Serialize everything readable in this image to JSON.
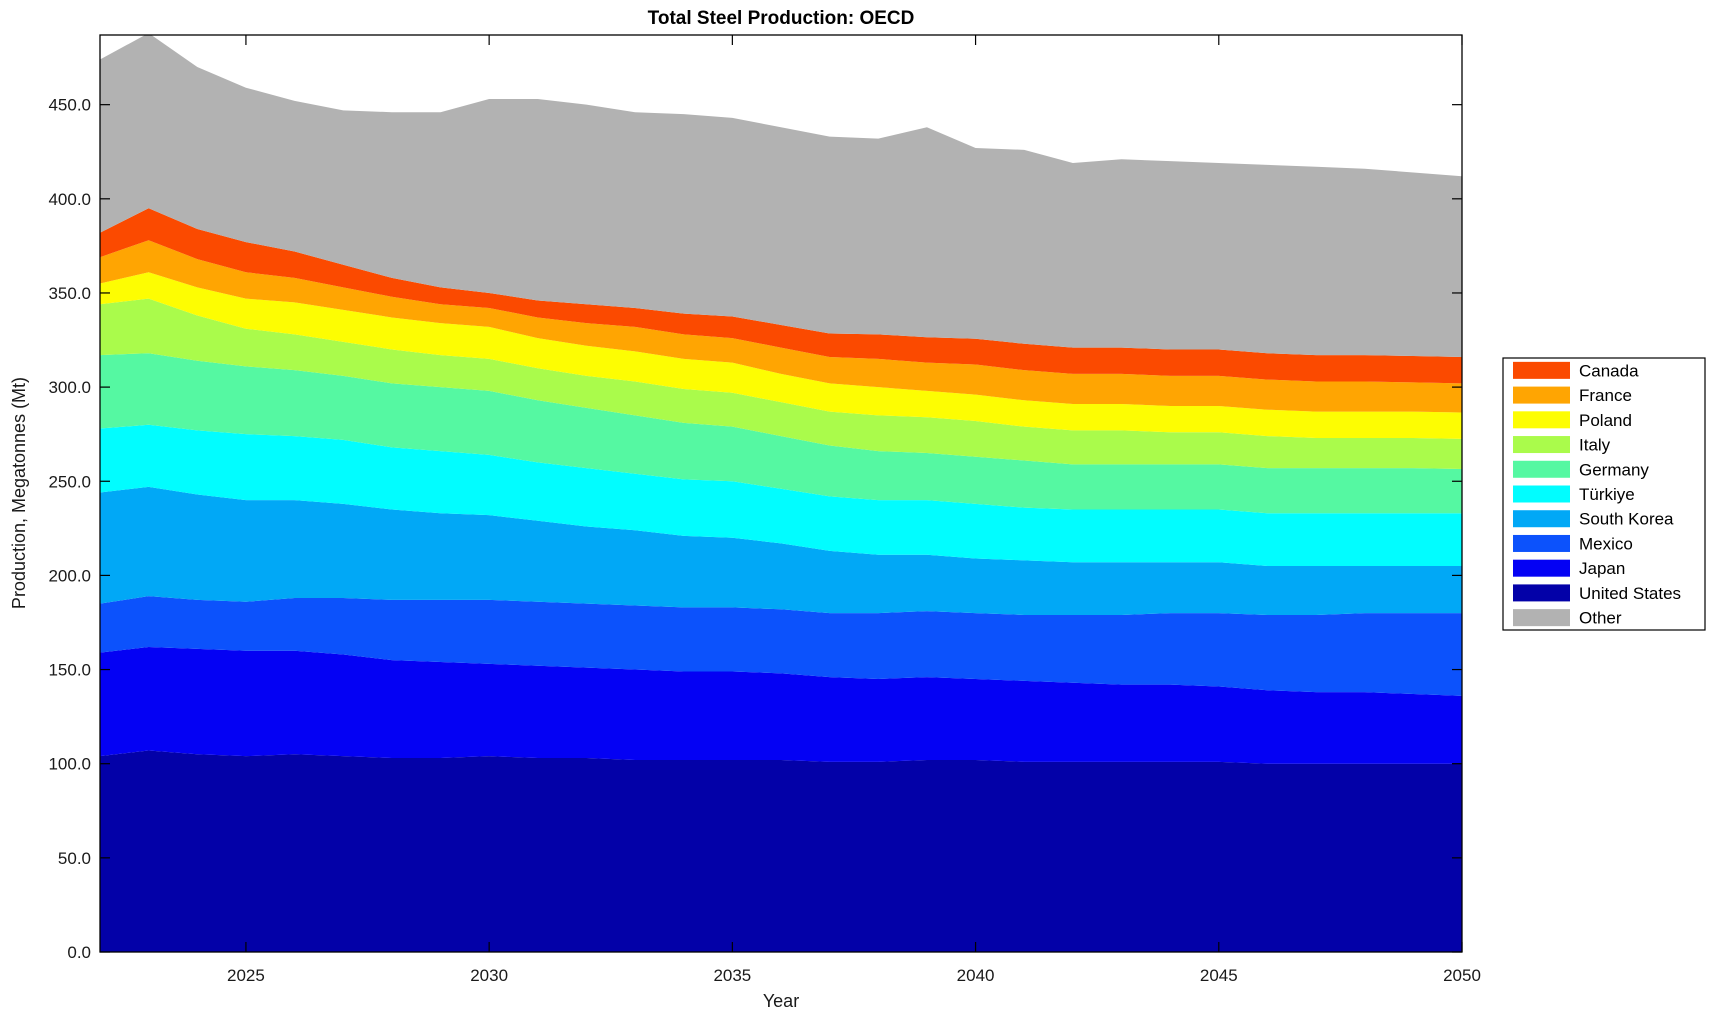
{
  "title": "Total Steel Production: OECD",
  "chart_data": {
    "type": "area",
    "stacked": true,
    "title": "Total Steel Production: OECD",
    "xlabel": "Year",
    "ylabel": "Production, Megatonnes (Mt)",
    "xlim": [
      2022,
      2050
    ],
    "ylim": [
      0,
      487
    ],
    "grid": false,
    "legend_position": "right-outside",
    "x": [
      2022,
      2023,
      2024,
      2025,
      2026,
      2027,
      2028,
      2029,
      2030,
      2031,
      2032,
      2033,
      2034,
      2035,
      2036,
      2037,
      2038,
      2039,
      2040,
      2041,
      2042,
      2043,
      2044,
      2045,
      2046,
      2047,
      2048,
      2049,
      2050
    ],
    "x_ticks": [
      2025,
      2030,
      2035,
      2040,
      2045,
      2050
    ],
    "x_tick_labels": [
      "2025",
      "2030",
      "2035",
      "2040",
      "2045",
      "2050"
    ],
    "y_ticks": [
      0,
      50,
      100,
      150,
      200,
      250,
      300,
      350,
      400,
      450
    ],
    "y_tick_labels": [
      "0.0",
      "50.0",
      "100.0",
      "150.0",
      "200.0",
      "250.0",
      "300.0",
      "350.0",
      "400.0",
      "450.0"
    ],
    "stack_order_bottom_to_top": [
      "United States",
      "Japan",
      "Mexico",
      "South Korea",
      "Türkiye",
      "Germany",
      "Italy",
      "Poland",
      "France",
      "Canada",
      "Other"
    ],
    "series": [
      {
        "name": "Canada",
        "color": "#fb4a00",
        "values": [
          13,
          17,
          16,
          16,
          14,
          12,
          10,
          9,
          8,
          9,
          10,
          10,
          11,
          11.5,
          12,
          12.5,
          13,
          13.5,
          13.7,
          14,
          14,
          14,
          14,
          14,
          14,
          14,
          14,
          14,
          14
        ]
      },
      {
        "name": "France",
        "color": "#ffa502",
        "values": [
          14,
          17,
          15,
          14,
          13,
          12,
          11,
          10,
          10,
          11,
          12,
          13,
          13,
          13,
          14,
          14,
          15,
          15,
          16,
          16,
          16,
          16,
          16,
          16,
          16,
          16,
          16,
          15.5,
          15.5
        ]
      },
      {
        "name": "Poland",
        "color": "#fdfd02",
        "values": [
          11,
          14,
          15,
          16,
          17,
          17,
          17,
          17,
          17,
          16,
          16,
          16,
          16,
          16,
          15,
          15,
          15,
          14,
          14,
          14,
          14,
          14,
          14,
          14,
          14,
          14,
          14,
          14,
          14
        ]
      },
      {
        "name": "Italy",
        "color": "#aafb4b",
        "values": [
          27,
          29,
          24,
          20,
          19,
          18,
          18,
          17,
          17,
          17,
          17,
          18,
          18,
          18,
          18,
          18,
          19,
          19,
          19,
          18,
          18,
          18,
          17,
          17,
          17,
          16,
          16,
          16,
          16
        ]
      },
      {
        "name": "Germany",
        "color": "#55f8a2",
        "values": [
          39,
          38,
          37,
          36,
          35,
          34,
          34,
          34,
          34,
          33,
          32,
          31,
          30,
          29,
          28,
          27,
          26,
          25,
          25,
          25,
          24,
          24,
          24,
          24,
          24,
          24,
          24,
          24,
          23.5
        ]
      },
      {
        "name": "Türkiye",
        "color": "#01fdff",
        "values": [
          34,
          33,
          34,
          35,
          34,
          34,
          33,
          33,
          32,
          31,
          31,
          30,
          30,
          30,
          29,
          29,
          29,
          29,
          29,
          28,
          28,
          28,
          28,
          28,
          28,
          28,
          28,
          28,
          28
        ]
      },
      {
        "name": "South Korea",
        "color": "#01a8f6",
        "values": [
          59,
          58,
          56,
          54,
          52,
          50,
          48,
          46,
          45,
          43,
          41,
          40,
          38,
          37,
          35,
          33,
          31,
          30,
          29,
          29,
          28,
          28,
          27,
          27,
          26,
          26,
          25,
          25,
          25
        ]
      },
      {
        "name": "Mexico",
        "color": "#0c52fc",
        "values": [
          26,
          27,
          26,
          26,
          28,
          30,
          32,
          33,
          34,
          34,
          34,
          34,
          34,
          34,
          34,
          34,
          35,
          35,
          35,
          35,
          36,
          37,
          38,
          39,
          40,
          41,
          42,
          43,
          44
        ]
      },
      {
        "name": "Japan",
        "color": "#0401f4",
        "values": [
          55,
          55,
          56,
          56,
          55,
          54,
          52,
          51,
          49,
          49,
          48,
          48,
          47,
          47,
          46,
          45,
          44,
          44,
          43,
          43,
          42,
          41,
          41,
          40,
          39,
          38,
          38,
          37,
          36
        ]
      },
      {
        "name": "United States",
        "color": "#0301a8",
        "values": [
          104,
          107,
          105,
          104,
          105,
          104,
          103,
          103,
          104,
          103,
          103,
          102,
          102,
          102,
          102,
          101,
          101,
          102,
          102,
          101,
          101,
          101,
          101,
          101,
          100,
          100,
          100,
          100,
          100
        ]
      },
      {
        "name": "Other",
        "color": "#b2b2b2",
        "values": [
          92,
          93,
          86,
          82,
          80,
          82,
          88,
          93,
          103,
          107,
          106,
          104,
          106,
          105.5,
          105,
          104.5,
          104,
          111.5,
          101.3,
          103,
          98,
          100,
          100,
          99,
          100,
          100,
          99,
          97.5,
          96
        ]
      }
    ]
  },
  "colors": {
    "background": "#ffffff",
    "axis": "#000000",
    "tick_label": "#1a1a1a",
    "legend_border": "#000000"
  }
}
